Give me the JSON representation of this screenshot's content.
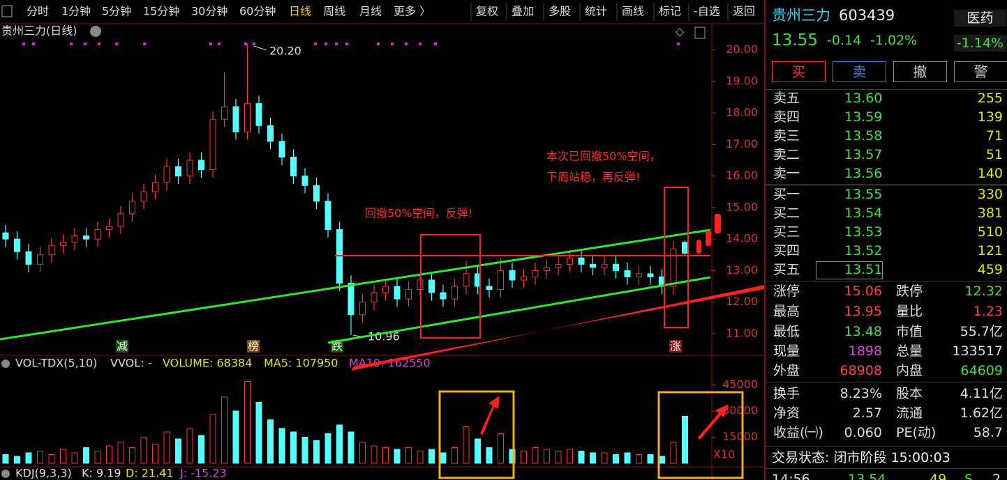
{
  "toolbar": {
    "periods": [
      "分时",
      "1分钟",
      "5分钟",
      "15分钟",
      "30分钟",
      "60分钟",
      "日线",
      "周线",
      "月线",
      "更多 〉"
    ],
    "tools": [
      "复权",
      "叠加",
      "多股",
      "统计",
      "画线",
      "标记",
      "-自选",
      "返回"
    ]
  },
  "chart_data": [
    {
      "type": "candlestick",
      "title": "贵州三力(日线)",
      "open": [
        14.2,
        14.0,
        13.6,
        13.2,
        13.5,
        13.8,
        13.9,
        14.1,
        14.0,
        14.3,
        14.4,
        14.8,
        15.2,
        15.5,
        15.8,
        16.3,
        16.0,
        16.5,
        16.2,
        17.8,
        18.2,
        17.4,
        18.3,
        17.6,
        17.1,
        16.6,
        16.0,
        15.7,
        15.2,
        14.3,
        12.6,
        11.6,
        12.0,
        12.3,
        12.5,
        12.1,
        12.4,
        12.7,
        12.3,
        12.1,
        12.5,
        12.9,
        12.5,
        12.4,
        13.0,
        12.7,
        12.8,
        13.0,
        13.1,
        13.2,
        13.4,
        13.2,
        13.1,
        13.2,
        13.0,
        12.8,
        12.9,
        12.8,
        12.5,
        13.9
      ],
      "close": [
        14.0,
        13.6,
        13.2,
        13.5,
        13.8,
        13.9,
        14.1,
        14.0,
        14.3,
        14.4,
        14.8,
        15.2,
        15.5,
        15.8,
        16.3,
        16.0,
        16.5,
        16.2,
        17.8,
        18.2,
        17.4,
        18.3,
        17.6,
        17.1,
        16.6,
        16.0,
        15.7,
        15.2,
        14.3,
        12.6,
        11.6,
        12.0,
        12.3,
        12.5,
        12.1,
        12.4,
        12.7,
        12.3,
        12.1,
        12.5,
        12.9,
        12.5,
        12.4,
        13.0,
        12.7,
        12.8,
        13.0,
        13.1,
        13.2,
        13.4,
        13.2,
        13.1,
        13.2,
        13.0,
        12.8,
        12.9,
        12.8,
        12.5,
        13.69,
        13.55
      ],
      "high": [
        14.45,
        14.25,
        13.85,
        13.75,
        14.05,
        14.15,
        14.35,
        14.35,
        14.55,
        14.65,
        15.05,
        15.45,
        15.75,
        16.05,
        16.55,
        16.55,
        16.75,
        16.75,
        18.05,
        19.3,
        18.45,
        20.2,
        18.55,
        17.85,
        17.35,
        16.85,
        16.25,
        15.95,
        15.45,
        14.55,
        12.85,
        12.25,
        12.55,
        12.75,
        12.75,
        12.65,
        12.95,
        12.95,
        12.55,
        12.75,
        13.3,
        13.15,
        12.75,
        13.4,
        13.25,
        13.05,
        13.25,
        13.35,
        13.45,
        13.65,
        13.65,
        13.45,
        13.45,
        13.45,
        13.25,
        13.15,
        13.15,
        13.05,
        13.94,
        13.95
      ],
      "low": [
        13.75,
        13.35,
        12.95,
        12.95,
        13.25,
        13.55,
        13.65,
        13.75,
        13.75,
        14.05,
        14.15,
        14.55,
        14.95,
        15.25,
        15.55,
        15.75,
        15.75,
        15.95,
        15.95,
        17.55,
        17.15,
        17.15,
        17.35,
        16.85,
        16.35,
        15.75,
        15.45,
        14.95,
        14.05,
        12.35,
        10.96,
        11.35,
        11.75,
        12.05,
        11.85,
        11.85,
        12.15,
        12.05,
        11.85,
        11.85,
        12.25,
        12.25,
        12.15,
        12.15,
        12.45,
        12.45,
        12.55,
        12.75,
        12.85,
        12.95,
        12.95,
        12.85,
        12.85,
        12.75,
        12.55,
        12.55,
        12.55,
        12.25,
        12.25,
        13.48
      ],
      "up_color": "#ff3232",
      "down_color": "#54ffff",
      "ylim": [
        10.6,
        20.7
      ],
      "yticks": [
        {
          "value": 11,
          "label": "11.00"
        },
        {
          "value": 12,
          "label": "12.00"
        },
        {
          "value": 13,
          "label": "13.00"
        },
        {
          "value": 14,
          "label": "14.00"
        },
        {
          "value": 15,
          "label": "15.00"
        },
        {
          "value": 16,
          "label": "16.00"
        },
        {
          "value": 17,
          "label": "17.00"
        },
        {
          "value": 18,
          "label": "18.00"
        },
        {
          "value": 19,
          "label": "19.00"
        },
        {
          "value": 20,
          "label": "20.00"
        }
      ],
      "high_label": "20.20",
      "low_label": "10.96",
      "annotations": [
        "回撤50%空间，反弹!",
        "本次已回撤50%空间，",
        "下周站稳，再反弹!"
      ],
      "markers": [
        "减",
        "榜",
        "跌",
        "涨"
      ]
    },
    {
      "type": "bar",
      "title": "VOL-TDX(5,10)",
      "legend": [
        {
          "text": "VVOL: -",
          "color": "#dddddd"
        },
        {
          "text": "VOLUME: 68384",
          "color": "#e8e800"
        },
        {
          "text": "MA5: 107950",
          "color": "#e8e800"
        },
        {
          "text": "MA10: 162550",
          "color": "#e040e0"
        }
      ],
      "values": [
        5000,
        4000,
        6000,
        7000,
        5000,
        8000,
        6000,
        9000,
        7000,
        10000,
        12000,
        9000,
        15000,
        11000,
        18000,
        14000,
        20000,
        16000,
        28000,
        38000,
        30000,
        47000,
        35000,
        25000,
        20000,
        18000,
        15000,
        13000,
        17000,
        22000,
        18000,
        12000,
        10000,
        9000,
        8000,
        9000,
        7000,
        8000,
        6000,
        9000,
        21000,
        14000,
        9000,
        17000,
        8000,
        7000,
        9000,
        8000,
        7000,
        8000,
        7000,
        6000,
        6000,
        5000,
        6000,
        5000,
        5000,
        4000,
        12000,
        27000
      ],
      "ylim": [
        0,
        50000
      ],
      "yticks": [
        15000,
        30000,
        45000
      ],
      "scale_label": "X10"
    }
  ],
  "kdj": [
    {
      "text": "KDJ(9,3,3)",
      "color": "#dddddd"
    },
    {
      "text": "K: 9.19",
      "color": "#dddddd"
    },
    {
      "text": "D: 21.41",
      "color": "#e8e800"
    },
    {
      "text": "J: -15.23",
      "color": "#e040e0"
    }
  ],
  "quote": {
    "name": "贵州三力",
    "code": "603439",
    "sector": "医药",
    "sector_change": "-1.14%",
    "price": "13.55",
    "change": "-0.14",
    "change_pct": "-1.02%",
    "buttons": [
      "买",
      "卖",
      "撤",
      "警"
    ],
    "asks": [
      {
        "label": "卖五",
        "price": "13.60",
        "volume": "255"
      },
      {
        "label": "卖四",
        "price": "13.59",
        "volume": "139"
      },
      {
        "label": "卖三",
        "price": "13.58",
        "volume": "71"
      },
      {
        "label": "卖二",
        "price": "13.57",
        "volume": "51"
      },
      {
        "label": "卖一",
        "price": "13.56",
        "volume": "140"
      }
    ],
    "bids": [
      {
        "label": "买一",
        "price": "13.55",
        "volume": "330"
      },
      {
        "label": "买二",
        "price": "13.54",
        "volume": "381"
      },
      {
        "label": "买三",
        "price": "13.53",
        "volume": "510"
      },
      {
        "label": "买四",
        "price": "13.52",
        "volume": "121"
      },
      {
        "label": "买五",
        "price": "13.51",
        "volume": "459"
      }
    ],
    "stats": [
      [
        {
          "label": "涨停",
          "value": "15.06",
          "color": "#ff4040"
        },
        {
          "label": "跌停",
          "value": "12.32",
          "color": "#40e040"
        }
      ],
      [
        {
          "label": "最高",
          "value": "13.95",
          "color": "#ff4040"
        },
        {
          "label": "量比",
          "value": "1.23",
          "color": "#ff4040"
        }
      ],
      [
        {
          "label": "最低",
          "value": "13.48",
          "color": "#40e040"
        },
        {
          "label": "市值",
          "value": "55.7亿",
          "color": "#dddddd"
        }
      ],
      [
        {
          "label": "现量",
          "value": "1898",
          "color": "#e040e0"
        },
        {
          "label": "总量",
          "value": "133517",
          "color": "#dddddd"
        }
      ],
      [
        {
          "label": "外盘",
          "value": "68908",
          "color": "#ff4040"
        },
        {
          "label": "内盘",
          "value": "64609",
          "color": "#40e040"
        }
      ]
    ],
    "stats2": [
      [
        {
          "label": "换手",
          "value": "8.23%",
          "color": "#dddddd"
        },
        {
          "label": "股本",
          "value": "4.11亿",
          "color": "#dddddd"
        }
      ],
      [
        {
          "label": "净资",
          "value": "2.57",
          "color": "#dddddd"
        },
        {
          "label": "流通",
          "value": "1.62亿",
          "color": "#dddddd"
        }
      ],
      [
        {
          "label": "收益(㈠)",
          "value": "0.060",
          "color": "#dddddd"
        },
        {
          "label": "PE(动)",
          "value": "58.7",
          "color": "#dddddd"
        }
      ]
    ],
    "status": "交易状态: 闭市阶段 15:00:03",
    "tick": [
      "14:56",
      "13.54",
      "49",
      "S",
      "2"
    ]
  }
}
